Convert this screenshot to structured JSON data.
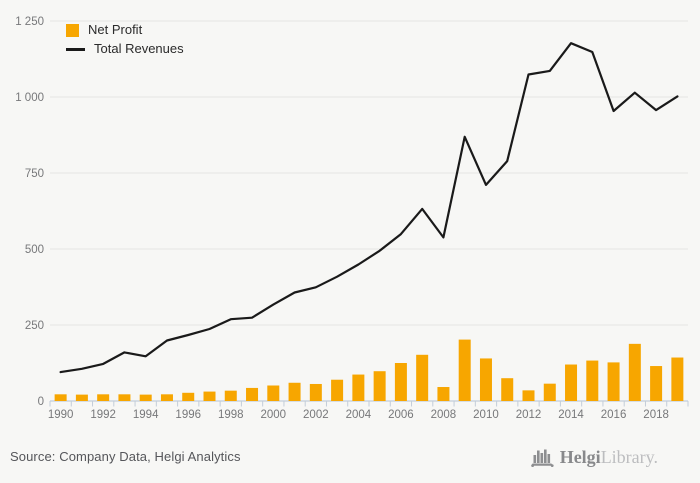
{
  "chart_data": {
    "type": "combo",
    "title": "",
    "categories": [
      1990,
      1991,
      1992,
      1993,
      1994,
      1995,
      1996,
      1997,
      1998,
      1999,
      2000,
      2001,
      2002,
      2003,
      2004,
      2005,
      2006,
      2007,
      2008,
      2009,
      2010,
      2011,
      2012,
      2013,
      2014,
      2015,
      2016,
      2017,
      2018,
      2019
    ],
    "series": [
      {
        "name": "Net Profit",
        "kind": "bar",
        "color": "#f7a600",
        "values": [
          22,
          21,
          22,
          22,
          21,
          22,
          27,
          31,
          34,
          43,
          51,
          60,
          56,
          70,
          87,
          98,
          125,
          152,
          46,
          202,
          140,
          75,
          35,
          57,
          120,
          133,
          127,
          188,
          115,
          143
        ]
      },
      {
        "name": "Total Revenues",
        "kind": "line",
        "color": "#1a1a1a",
        "values": [
          95,
          106,
          122,
          160,
          147,
          199,
          217,
          237,
          269,
          274,
          317,
          357,
          374,
          409,
          449,
          494,
          549,
          632,
          538,
          869,
          711,
          789,
          1074,
          1086,
          1177,
          1148,
          954,
          1014,
          957,
          1002
        ]
      }
    ],
    "ylim": [
      0,
      1250
    ],
    "yticks": [
      0,
      250,
      500,
      750,
      1000,
      1250
    ],
    "ytick_labels": [
      "0",
      "250",
      "500",
      "750",
      "1 000",
      "1 250"
    ],
    "xtick_labels": [
      "1990",
      "1992",
      "1994",
      "1996",
      "1998",
      "2000",
      "2002",
      "2004",
      "2006",
      "2008",
      "2010",
      "2012",
      "2014",
      "2016",
      "2018"
    ],
    "xtick_step_years": 2,
    "grid": true,
    "legend_position": "top-left",
    "colors": {
      "background": "#f7f7f5",
      "gridline": "#e4e4e2",
      "axis": "#c3cdd9",
      "tick_label": "#77787a"
    }
  },
  "footer": {
    "source": "Source: Company Data, Helgi Analytics",
    "logo_bold": "Helgi",
    "logo_light": "Library."
  }
}
